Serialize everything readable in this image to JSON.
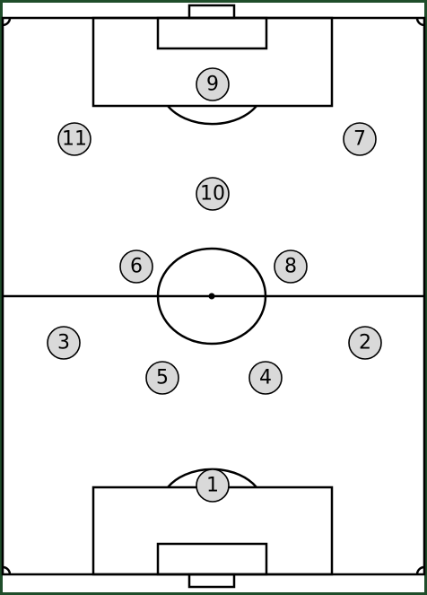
{
  "pitch": {
    "background_color": "#ffffff",
    "border_color": "#1f4d2a",
    "line_color": "#000000"
  },
  "player_style": {
    "fill": "#d9d9d9",
    "stroke": "#000000"
  },
  "players": [
    {
      "number": "9"
    },
    {
      "number": "11"
    },
    {
      "number": "7"
    },
    {
      "number": "10"
    },
    {
      "number": "6"
    },
    {
      "number": "8"
    },
    {
      "number": "3"
    },
    {
      "number": "2"
    },
    {
      "number": "5"
    },
    {
      "number": "4"
    },
    {
      "number": "1"
    }
  ]
}
